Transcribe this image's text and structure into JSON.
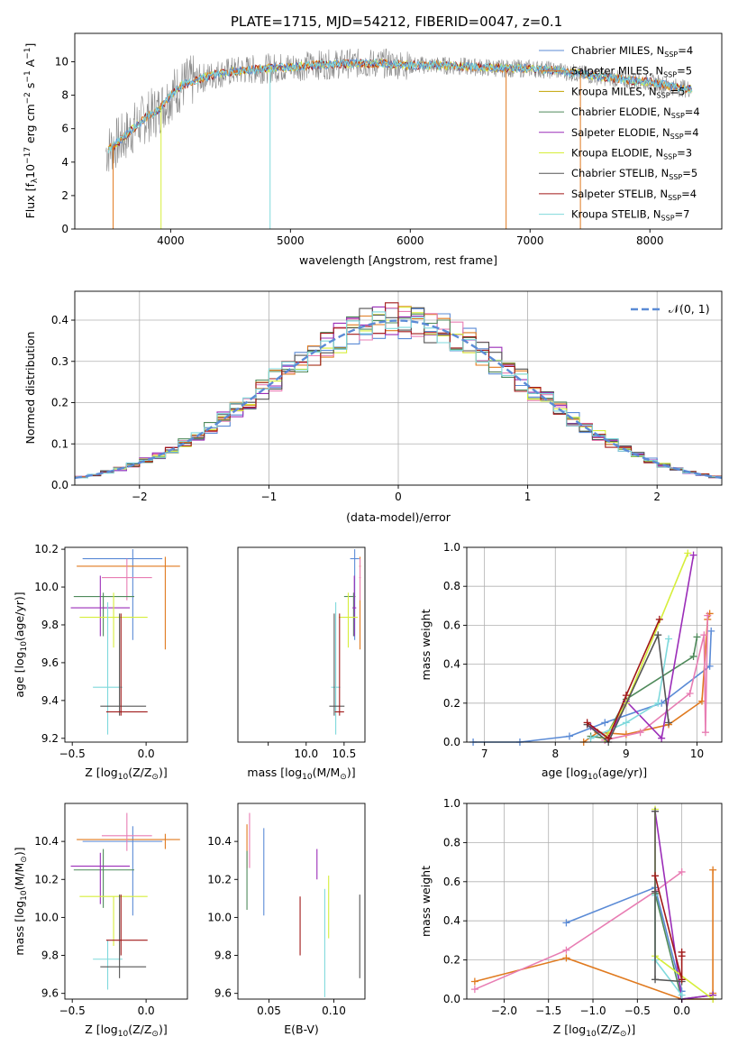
{
  "figure_title": "PLATE=1715, MJD=54212, FIBERID=0047, z=0.1",
  "colors": {
    "Chabrier MILES": "#5b8bd6",
    "Salpeter MILES": "#e07a1f",
    "Kroupa MILES": "#c2a200",
    "Chabrier ELODIE": "#4f8a5b",
    "Salpeter ELODIE": "#9b2db8",
    "Kroupa ELODIE": "#d6ee3a",
    "Chabrier STELIB": "#555555",
    "Salpeter STELIB": "#a01818",
    "Kroupa STELIB": "#7fd9dc",
    "pink": "#e87db3"
  },
  "chart_data": [
    {
      "id": "spectrum",
      "type": "line",
      "title": "PLATE=1715, MJD=54212, FIBERID=0047, z=0.1",
      "xlabel": "wavelength [Angstrom, rest frame]",
      "ylabel_parts": [
        "Flux [f",
        "λ",
        "10",
        "−17",
        " erg cm",
        "−2",
        " s",
        "−1",
        " A",
        "−1",
        "]"
      ],
      "xlim": [
        3200,
        8600
      ],
      "ylim": [
        0,
        11.7
      ],
      "xticks": [
        4000,
        5000,
        6000,
        7000,
        8000
      ],
      "yticks": [
        0,
        2,
        4,
        6,
        8,
        10
      ],
      "legend_placement": "top-right",
      "series": [
        {
          "base": "Chabrier MILES, N",
          "sub": "SSP",
          "tail": "=4",
          "color_key": "Chabrier MILES"
        },
        {
          "base": "Salpeter MILES, N",
          "sub": "SSP",
          "tail": "=5",
          "color_key": "Salpeter MILES"
        },
        {
          "base": "Kroupa MILES, N",
          "sub": "SSP",
          "tail": "=5",
          "color_key": "Kroupa MILES"
        },
        {
          "base": "Chabrier ELODIE, N",
          "sub": "SSP",
          "tail": "=4",
          "color_key": "Chabrier ELODIE"
        },
        {
          "base": "Salpeter ELODIE, N",
          "sub": "SSP",
          "tail": "=4",
          "color_key": "Salpeter ELODIE"
        },
        {
          "base": "Kroupa ELODIE, N",
          "sub": "SSP",
          "tail": "=3",
          "color_key": "Kroupa ELODIE"
        },
        {
          "base": "Chabrier STELIB, N",
          "sub": "SSP",
          "tail": "=5",
          "color_key": "Chabrier STELIB"
        },
        {
          "base": "Salpeter STELIB, N",
          "sub": "SSP",
          "tail": "=4",
          "color_key": "Salpeter STELIB"
        },
        {
          "base": "Kroupa STELIB, N",
          "sub": "SSP",
          "tail": "=7",
          "color_key": "Kroupa STELIB"
        }
      ],
      "data_envelope": {
        "x": [
          3450,
          3600,
          3700,
          3800,
          3900,
          4000,
          4100,
          4200,
          4400,
          4600,
          4800,
          5000,
          5200,
          5500,
          5800,
          6000,
          6200,
          6500,
          6800,
          7000,
          7200,
          7400,
          7600,
          7800,
          8000,
          8200,
          8300
        ],
        "y": [
          4.6,
          5.4,
          6.1,
          6.7,
          7.1,
          8.0,
          8.6,
          8.9,
          9.3,
          9.5,
          9.6,
          9.7,
          9.8,
          9.9,
          9.9,
          9.8,
          9.8,
          9.7,
          9.6,
          9.6,
          9.5,
          9.3,
          9.1,
          8.9,
          8.8,
          8.5,
          8.4
        ]
      }
    },
    {
      "id": "histogram",
      "type": "bar",
      "xlabel": "(data-model)/error",
      "ylabel": "Normed distribution",
      "xlim": [
        -2.5,
        2.5
      ],
      "ylim": [
        0,
        0.47
      ],
      "xticks": [
        -2,
        -1,
        0,
        1,
        2
      ],
      "yticks": [
        0.0,
        0.1,
        0.2,
        0.3,
        0.4
      ],
      "grid": true,
      "legend_placement": "top-right",
      "legend_label": "𝒩(0, 1)",
      "bin_width": 0.1,
      "curve": {
        "mean": 0,
        "sigma": 1,
        "color": "#5b8bd6"
      }
    },
    {
      "id": "age-vs-Z",
      "type": "scatter",
      "xlabel_parts": [
        "Z [log",
        "10",
        "(Z/Z",
        "⊙",
        ")]"
      ],
      "ylabel_parts": [
        "age  [log",
        "10",
        "(age/yr)]"
      ],
      "xlim": [
        -0.55,
        0.28
      ],
      "ylim": [
        9.18,
        10.21
      ],
      "xticks": [
        -0.5,
        0.0
      ],
      "yticks": [
        9.2,
        9.4,
        9.6,
        9.8,
        10.0,
        10.2
      ],
      "points": [
        {
          "color_key": "Chabrier MILES",
          "x": -0.09,
          "xerr": [
            0.34,
            0.2
          ],
          "y": 10.15,
          "yerr": [
            0.43,
            0.05
          ]
        },
        {
          "color_key": "Salpeter MILES",
          "x": 0.13,
          "xerr": [
            0.6,
            0.1
          ],
          "y": 10.11,
          "yerr": [
            0.44,
            0.05
          ]
        },
        {
          "color_key": "pink",
          "x": -0.13,
          "xerr": [
            0.17,
            0.17
          ],
          "y": 10.05,
          "yerr": [
            0.12,
            0.1
          ]
        },
        {
          "color_key": "Chabrier ELODIE",
          "x": -0.29,
          "xerr": [
            0.2,
            0.21
          ],
          "y": 9.95,
          "yerr": [
            0.21,
            0.02
          ]
        },
        {
          "color_key": "Salpeter ELODIE",
          "x": -0.31,
          "xerr": [
            0.2,
            0.2
          ],
          "y": 9.89,
          "yerr": [
            0.15,
            0.17
          ]
        },
        {
          "color_key": "Kroupa ELODIE",
          "x": -0.22,
          "xerr": [
            0.23,
            0.23
          ],
          "y": 9.84,
          "yerr": [
            0.16,
            0.13
          ]
        },
        {
          "color_key": "Kroupa STELIB",
          "x": -0.26,
          "xerr": [
            0.1,
            0.1
          ],
          "y": 9.47,
          "yerr": [
            0.25,
            0.45
          ]
        },
        {
          "color_key": "Chabrier STELIB",
          "x": -0.18,
          "xerr": [
            0.13,
            0.18
          ],
          "y": 9.37,
          "yerr": [
            0.05,
            0.49
          ]
        },
        {
          "color_key": "Salpeter STELIB",
          "x": -0.17,
          "xerr": [
            0.1,
            0.18
          ],
          "y": 9.34,
          "yerr": [
            0.02,
            0.52
          ]
        }
      ]
    },
    {
      "id": "age-vs-mass",
      "type": "scatter",
      "xlabel_parts": [
        "mass [log",
        "10",
        "(M/M",
        "⊙",
        ")]"
      ],
      "xlim": [
        7.2,
        10.55
      ],
      "ylim": [
        9.18,
        10.21
      ],
      "xticks": [
        8.0,
        9.0,
        10.0
      ],
      "xtick_labels": [
        "",
        "10.0",
        "10.5"
      ],
      "points": [
        {
          "color_key": "Chabrier MILES",
          "x": 10.28,
          "xerr": [
            0.12,
            0.12
          ],
          "y": 10.15,
          "yerr": [
            0.43,
            0.05
          ]
        },
        {
          "color_key": "Salpeter MILES",
          "x": 10.42,
          "xerr": [
            0.02,
            0.02
          ],
          "y": 10.11,
          "yerr": [
            0.44,
            0.05
          ]
        },
        {
          "color_key": "pink",
          "x": 10.42,
          "xerr": [
            0.02,
            0.02
          ],
          "y": 10.05,
          "yerr": [
            0.12,
            0.1
          ]
        },
        {
          "color_key": "Chabrier ELODIE",
          "x": 10.25,
          "xerr": [
            0.25,
            0.05
          ],
          "y": 9.95,
          "yerr": [
            0.21,
            0.02
          ]
        },
        {
          "color_key": "Salpeter ELODIE",
          "x": 10.27,
          "xerr": [
            0.05,
            0.05
          ],
          "y": 9.89,
          "yerr": [
            0.15,
            0.17
          ]
        },
        {
          "color_key": "Kroupa ELODIE",
          "x": 10.11,
          "xerr": [
            0.25,
            0.25
          ],
          "y": 9.84,
          "yerr": [
            0.16,
            0.13
          ]
        },
        {
          "color_key": "Kroupa STELIB",
          "x": 9.78,
          "xerr": [
            0.12,
            0.12
          ],
          "y": 9.47,
          "yerr": [
            0.25,
            0.45
          ]
        },
        {
          "color_key": "Chabrier STELIB",
          "x": 9.74,
          "xerr": [
            0.13,
            0.27
          ],
          "y": 9.37,
          "yerr": [
            0.05,
            0.49
          ]
        },
        {
          "color_key": "Salpeter STELIB",
          "x": 9.88,
          "xerr": [
            0.12,
            0.12
          ],
          "y": 9.34,
          "yerr": [
            0.02,
            0.52
          ]
        }
      ]
    },
    {
      "id": "mass-weight-vs-age",
      "type": "line",
      "xlabel_parts": [
        "age  [log",
        "10",
        "(age/yr)]"
      ],
      "ylabel": "mass weight",
      "xlim": [
        6.75,
        10.35
      ],
      "ylim": [
        0,
        1
      ],
      "xticks": [
        7,
        8,
        9,
        10
      ],
      "yticks": [
        0.0,
        0.2,
        0.4,
        0.6,
        0.8,
        1.0
      ],
      "grid": true,
      "series": [
        {
          "color_key": "Chabrier MILES",
          "x": [
            6.84,
            7.5,
            8.2,
            8.7,
            9.5,
            10.18,
            10.2
          ],
          "y": [
            0.0,
            0.0,
            0.03,
            0.1,
            0.2,
            0.39,
            0.57
          ]
        },
        {
          "color_key": "Salpeter MILES",
          "x": [
            8.4,
            8.6,
            9.0,
            9.6,
            10.07,
            10.15,
            10.18
          ],
          "y": [
            0.0,
            0.05,
            0.04,
            0.09,
            0.21,
            0.63,
            0.66
          ]
        },
        {
          "color_key": "pink",
          "x": [
            8.7,
            9.2,
            9.9,
            10.1,
            10.12,
            10.15
          ],
          "y": [
            0.01,
            0.05,
            0.25,
            0.55,
            0.05,
            0.65
          ]
        },
        {
          "color_key": "Chabrier ELODIE",
          "x": [
            8.5,
            8.7,
            9.0,
            9.95,
            10.0
          ],
          "y": [
            0.03,
            0.02,
            0.22,
            0.44,
            0.54
          ]
        },
        {
          "color_key": "Salpeter ELODIE",
          "x": [
            8.5,
            8.75,
            9.0,
            9.5,
            9.95
          ],
          "y": [
            0.08,
            0.02,
            0.21,
            0.02,
            0.96
          ]
        },
        {
          "color_key": "Kroupa ELODIE",
          "x": [
            8.7,
            9.0,
            9.87
          ],
          "y": [
            0.02,
            0.2,
            0.97
          ]
        },
        {
          "color_key": "Kroupa STELIB",
          "x": [
            8.5,
            9.0,
            9.45,
            9.6
          ],
          "y": [
            0.02,
            0.1,
            0.2,
            0.53
          ]
        },
        {
          "color_key": "Chabrier STELIB",
          "x": [
            8.45,
            8.75,
            9.45,
            9.6
          ],
          "y": [
            0.09,
            0.0,
            0.55,
            0.1
          ]
        },
        {
          "color_key": "Salpeter STELIB",
          "x": [
            8.45,
            8.75,
            9.0,
            9.47
          ],
          "y": [
            0.1,
            0.02,
            0.24,
            0.63
          ]
        }
      ]
    },
    {
      "id": "mass-vs-Z",
      "type": "scatter",
      "xlabel_parts": [
        "Z [log",
        "10",
        "(Z/Z",
        "⊙",
        ")]"
      ],
      "ylabel_parts": [
        "mass [log",
        "10",
        "(M/M",
        "⊙",
        ")]"
      ],
      "xlim": [
        -0.55,
        0.28
      ],
      "ylim": [
        9.57,
        10.6
      ],
      "xticks": [
        -0.5,
        0.0
      ],
      "yticks": [
        9.6,
        9.8,
        10.0,
        10.2,
        10.4
      ],
      "points": [
        {
          "color_key": "Chabrier MILES",
          "x": -0.09,
          "xerr": [
            0.34,
            0.2
          ],
          "y": 10.4,
          "yerr": [
            0.39,
            0.08
          ]
        },
        {
          "color_key": "Salpeter MILES",
          "x": 0.13,
          "xerr": [
            0.6,
            0.1
          ],
          "y": 10.41,
          "yerr": [
            0.05,
            0.03
          ]
        },
        {
          "color_key": "pink",
          "x": -0.13,
          "xerr": [
            0.17,
            0.17
          ],
          "y": 10.43,
          "yerr": [
            0.08,
            0.12
          ]
        },
        {
          "color_key": "Chabrier ELODIE",
          "x": -0.29,
          "xerr": [
            0.2,
            0.21
          ],
          "y": 10.25,
          "yerr": [
            0.2,
            0.11
          ]
        },
        {
          "color_key": "Salpeter ELODIE",
          "x": -0.31,
          "xerr": [
            0.2,
            0.2
          ],
          "y": 10.27,
          "yerr": [
            0.2,
            0.07
          ]
        },
        {
          "color_key": "Kroupa ELODIE",
          "x": -0.22,
          "xerr": [
            0.23,
            0.23
          ],
          "y": 10.11,
          "yerr": [
            0.26,
            0.0
          ]
        },
        {
          "color_key": "Kroupa STELIB",
          "x": -0.26,
          "xerr": [
            0.1,
            0.1
          ],
          "y": 9.78,
          "yerr": [
            0.16,
            0.1
          ]
        },
        {
          "color_key": "Chabrier STELIB",
          "x": -0.18,
          "xerr": [
            0.13,
            0.18
          ],
          "y": 9.74,
          "yerr": [
            0.06,
            0.38
          ]
        },
        {
          "color_key": "Salpeter STELIB",
          "x": -0.17,
          "xerr": [
            0.1,
            0.18
          ],
          "y": 9.88,
          "yerr": [
            0.08,
            0.24
          ]
        }
      ]
    },
    {
      "id": "mass-vs-EBV",
      "type": "scatter",
      "xlabel": "E(B-V)",
      "xlim": [
        0.026,
        0.124
      ],
      "ylim": [
        9.57,
        10.6
      ],
      "xticks": [
        0.05,
        0.1
      ],
      "xtick_labels": [
        "0.05",
        "0.10"
      ],
      "yticks": [
        9.6,
        9.8,
        10.0,
        10.2,
        10.4
      ],
      "points": [
        {
          "color_key": "Chabrier MILES",
          "x": 0.046,
          "yerr_lo": 10.01,
          "yerr_hi": 10.47
        },
        {
          "color_key": "Salpeter MILES",
          "x": 0.033,
          "yerr_lo": 10.26,
          "yerr_hi": 10.49
        },
        {
          "color_key": "pink",
          "x": 0.035,
          "yerr_lo": 10.26,
          "yerr_hi": 10.55
        },
        {
          "color_key": "Chabrier ELODIE",
          "x": 0.033,
          "yerr_lo": 10.04,
          "yerr_hi": 10.35
        },
        {
          "color_key": "Salpeter ELODIE",
          "x": 0.087,
          "yerr_lo": 10.2,
          "yerr_hi": 10.36
        },
        {
          "color_key": "Kroupa ELODIE",
          "x": 0.096,
          "yerr_lo": 9.89,
          "yerr_hi": 10.22
        },
        {
          "color_key": "Kroupa STELIB",
          "x": 0.093,
          "yerr_lo": 9.58,
          "yerr_hi": 10.15
        },
        {
          "color_key": "Chabrier STELIB",
          "x": 0.12,
          "yerr_lo": 9.68,
          "yerr_hi": 10.12
        },
        {
          "color_key": "Salpeter STELIB",
          "x": 0.074,
          "yerr_lo": 9.8,
          "yerr_hi": 10.11
        }
      ]
    },
    {
      "id": "mass-weight-vs-Z",
      "type": "line",
      "xlabel_parts": [
        "Z [log",
        "10",
        "(Z/Z",
        "⊙",
        ")]"
      ],
      "ylabel": "mass weight",
      "xlim": [
        -2.42,
        0.45
      ],
      "ylim": [
        0,
        1
      ],
      "xticks": [
        -2.0,
        -1.5,
        -1.0,
        -0.5,
        0.0
      ],
      "yticks": [
        0.0,
        0.2,
        0.4,
        0.6,
        0.8,
        1.0
      ],
      "grid": true,
      "series": [
        {
          "color_key": "Chabrier MILES",
          "x": [
            -1.3,
            -0.3,
            0.0,
            0.0
          ],
          "y": [
            0.39,
            0.57,
            0.04,
            0.0
          ]
        },
        {
          "color_key": "Salpeter MILES",
          "x": [
            -2.33,
            -1.3,
            0.0,
            0.35,
            0.35,
            0.35
          ],
          "y": [
            0.09,
            0.21,
            0.0,
            0.0,
            0.03,
            0.66
          ]
        },
        {
          "color_key": "pink",
          "x": [
            -2.33,
            -1.3,
            -0.3,
            0.0
          ],
          "y": [
            0.05,
            0.25,
            0.55,
            0.65
          ]
        },
        {
          "color_key": "Chabrier ELODIE",
          "x": [
            -0.3,
            0.0,
            0.35
          ],
          "y": [
            0.54,
            0.0,
            0.02
          ]
        },
        {
          "color_key": "Salpeter ELODIE",
          "x": [
            -0.3,
            0.0,
            0.35
          ],
          "y": [
            0.96,
            0.0,
            0.02
          ]
        },
        {
          "color_key": "Kroupa ELODIE",
          "x": [
            -0.3,
            -0.3,
            0.35
          ],
          "y": [
            0.97,
            0.22,
            0.0
          ]
        },
        {
          "color_key": "Kroupa STELIB",
          "x": [
            -0.3,
            -0.3,
            0.0
          ],
          "y": [
            0.53,
            0.2,
            0.02
          ]
        },
        {
          "color_key": "Chabrier STELIB",
          "x": [
            -0.3,
            -0.3,
            -0.3,
            0.0
          ],
          "y": [
            0.96,
            0.55,
            0.1,
            0.09
          ]
        },
        {
          "color_key": "Salpeter STELIB",
          "x": [
            -0.3,
            0.0,
            0.0,
            0.0
          ],
          "y": [
            0.63,
            0.1,
            0.22,
            0.24
          ]
        }
      ]
    }
  ]
}
